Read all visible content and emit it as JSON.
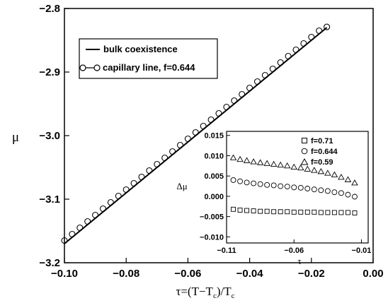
{
  "chart_data": [
    {
      "type": "line",
      "x_ticks": [
        "−0.10",
        "−0.08",
        "−0.06",
        "−0.04",
        "−0.02",
        "0.00"
      ],
      "y_ticks": [
        "−2.8",
        "−2.9",
        "−3.0",
        "−3.1",
        "−3.2"
      ],
      "xlim": [
        -0.1,
        0.0
      ],
      "ylim": [
        -3.2,
        -2.8
      ],
      "xlabel": {
        "main": "τ=(T−T",
        "sub1": "c",
        "mid": ")/T",
        "sub2": "c"
      },
      "ylabel": "μ",
      "legend": "top-left",
      "series": [
        {
          "name": "bulk coexistence",
          "style": "solid line",
          "x": [
            -0.1,
            -0.015
          ],
          "y": [
            -3.17,
            -2.83
          ]
        },
        {
          "name": "capillary line, f=0.644",
          "style": "open circles",
          "x": [
            -0.1,
            -0.0975,
            -0.095,
            -0.0925,
            -0.09,
            -0.0875,
            -0.085,
            -0.0825,
            -0.08,
            -0.0775,
            -0.075,
            -0.0725,
            -0.07,
            -0.0675,
            -0.065,
            -0.0625,
            -0.06,
            -0.0575,
            -0.055,
            -0.0525,
            -0.05,
            -0.0475,
            -0.045,
            -0.0425,
            -0.04,
            -0.0375,
            -0.035,
            -0.0325,
            -0.03,
            -0.0275,
            -0.025,
            -0.0225,
            -0.02,
            -0.0175,
            -0.015
          ],
          "y": [
            -3.165,
            -3.155,
            -3.145,
            -3.135,
            -3.125,
            -3.115,
            -3.105,
            -3.095,
            -3.085,
            -3.075,
            -3.065,
            -3.055,
            -3.045,
            -3.035,
            -3.025,
            -3.015,
            -3.005,
            -2.995,
            -2.985,
            -2.975,
            -2.965,
            -2.955,
            -2.945,
            -2.935,
            -2.925,
            -2.915,
            -2.905,
            -2.895,
            -2.885,
            -2.875,
            -2.865,
            -2.855,
            -2.845,
            -2.835,
            -2.829
          ]
        }
      ]
    },
    {
      "type": "scatter",
      "x_ticks": [
        "−0.11",
        "−0.06",
        "−0.01"
      ],
      "y_ticks": [
        "0.015",
        "0.010",
        "0.005",
        "0.000",
        "−0.005",
        "−0.010"
      ],
      "xlim": [
        -0.11,
        -0.005
      ],
      "ylim": [
        -0.0115,
        0.016
      ],
      "xlabel": "τ",
      "ylabel": "Δμ",
      "legend": "top-right",
      "series": [
        {
          "name": "f=0.71",
          "marker": "square",
          "x": [
            -0.105,
            -0.1,
            -0.095,
            -0.09,
            -0.085,
            -0.08,
            -0.075,
            -0.07,
            -0.065,
            -0.06,
            -0.055,
            -0.05,
            -0.045,
            -0.04,
            -0.035,
            -0.03,
            -0.025,
            -0.02,
            -0.015
          ],
          "y": [
            -0.0032,
            -0.0034,
            -0.0035,
            -0.0036,
            -0.0037,
            -0.0037,
            -0.0038,
            -0.0038,
            -0.0038,
            -0.0039,
            -0.0039,
            -0.0039,
            -0.0039,
            -0.004,
            -0.004,
            -0.004,
            -0.004,
            -0.004,
            -0.0041
          ]
        },
        {
          "name": "f=0.644",
          "marker": "circle",
          "x": [
            -0.105,
            -0.1,
            -0.095,
            -0.09,
            -0.085,
            -0.08,
            -0.075,
            -0.07,
            -0.065,
            -0.06,
            -0.055,
            -0.05,
            -0.045,
            -0.04,
            -0.035,
            -0.03,
            -0.025,
            -0.02,
            -0.015
          ],
          "y": [
            0.004,
            0.0037,
            0.0034,
            0.0032,
            0.003,
            0.0028,
            0.0027,
            0.0025,
            0.0024,
            0.0022,
            0.0021,
            0.0019,
            0.0017,
            0.0015,
            0.0013,
            0.001,
            0.0008,
            0.0004,
            -0.0001
          ]
        },
        {
          "name": "f=0.59",
          "marker": "triangle",
          "x": [
            -0.105,
            -0.1,
            -0.095,
            -0.09,
            -0.085,
            -0.08,
            -0.075,
            -0.07,
            -0.065,
            -0.06,
            -0.055,
            -0.05,
            -0.045,
            -0.04,
            -0.035,
            -0.03,
            -0.025,
            -0.02,
            -0.015
          ],
          "y": [
            0.0095,
            0.0091,
            0.0088,
            0.0085,
            0.0083,
            0.0081,
            0.0079,
            0.0077,
            0.0075,
            0.0072,
            0.007,
            0.0067,
            0.0064,
            0.0061,
            0.0057,
            0.0053,
            0.0047,
            0.0041,
            0.0033
          ]
        }
      ]
    }
  ]
}
